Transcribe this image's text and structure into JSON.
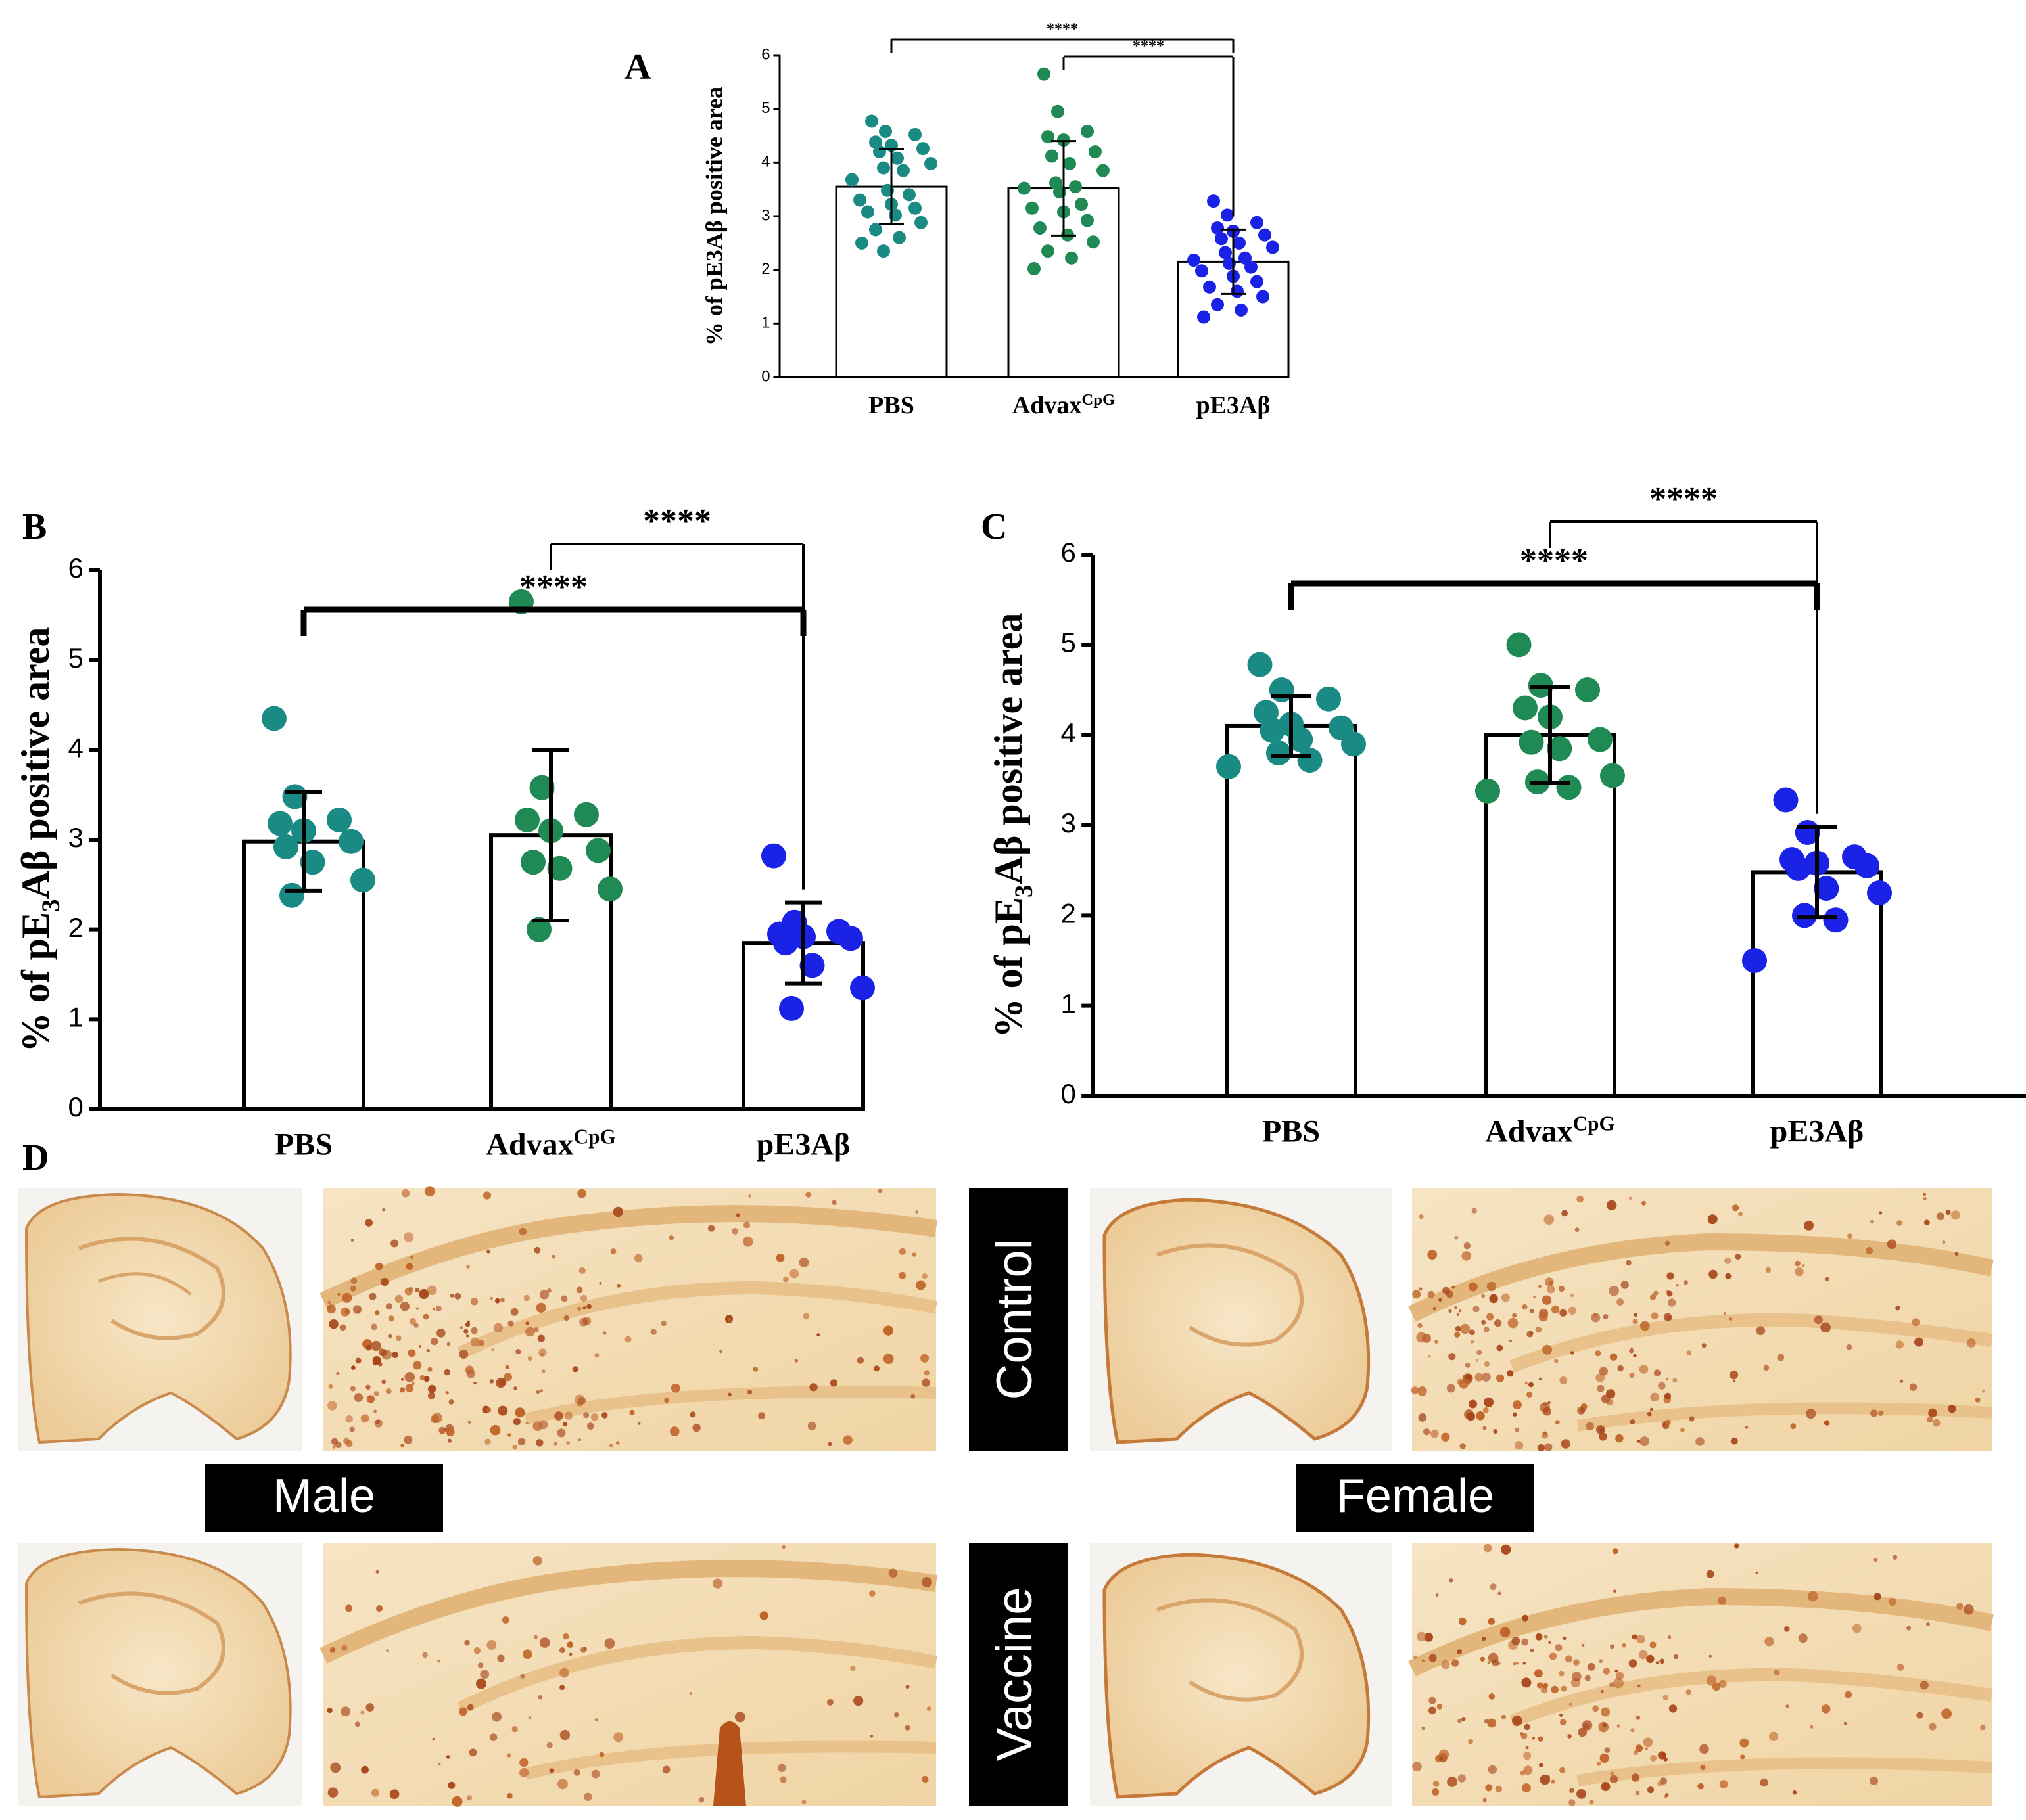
{
  "panels": {
    "A": {
      "letter": "A"
    },
    "B": {
      "letter": "B"
    },
    "C": {
      "letter": "C"
    },
    "D": {
      "letter": "D"
    }
  },
  "labels": {
    "control": "Control",
    "vaccine": "Vaccine",
    "male": "Male",
    "female": "Female"
  },
  "colors": {
    "pbs": "#1a8a84",
    "advax": "#1f8a54",
    "pe3ab": "#1a22e6",
    "tissue_bg": "#f3dcb6",
    "tissue_stain": "#b5531a"
  },
  "chart_data": [
    {
      "id": "A",
      "type": "bar",
      "title": "",
      "ylabel": "% of pE3Aβ positive area",
      "ylim": [
        0,
        6
      ],
      "yticks": [
        "0",
        "1",
        "2",
        "3",
        "4",
        "5",
        "6"
      ],
      "categories": [
        "PBS",
        "Advax",
        "pE3Aβ"
      ],
      "category_sup": [
        "",
        "CpG",
        ""
      ],
      "means": [
        3.55,
        3.52,
        2.15
      ],
      "sd": [
        0.7,
        0.88,
        0.6
      ],
      "points": [
        [
          4.77,
          4.58,
          4.52,
          4.38,
          4.32,
          4.26,
          4.2,
          4.08,
          3.98,
          3.9,
          3.85,
          3.68,
          3.48,
          3.4,
          3.3,
          3.22,
          3.15,
          3.08,
          3.02,
          2.88,
          2.75,
          2.6,
          2.5,
          2.35
        ],
        [
          5.65,
          4.95,
          4.58,
          4.48,
          4.42,
          4.2,
          4.12,
          3.98,
          3.85,
          3.62,
          3.55,
          3.52,
          3.45,
          3.22,
          3.15,
          3.08,
          2.92,
          2.78,
          2.65,
          2.52,
          2.35,
          2.22,
          2.02
        ],
        [
          3.28,
          3.02,
          2.88,
          2.78,
          2.72,
          2.65,
          2.58,
          2.5,
          2.42,
          2.32,
          2.22,
          2.18,
          2.12,
          2.05,
          1.98,
          1.88,
          1.78,
          1.68,
          1.6,
          1.5,
          1.35,
          1.25,
          1.12
        ]
      ],
      "significance": [
        {
          "from": 0,
          "to": 2,
          "label": "****"
        },
        {
          "from": 1,
          "to": 2,
          "label": "****"
        }
      ]
    },
    {
      "id": "B",
      "type": "bar",
      "title": "",
      "ylabel": "% of pE",
      "ylabel_sub": "3",
      "ylabel_end": "Aβ positive area",
      "ylim": [
        0,
        6
      ],
      "yticks": [
        "0",
        "1",
        "2",
        "3",
        "4",
        "5",
        "6"
      ],
      "categories": [
        "PBS",
        "Advax",
        "pE3Aβ"
      ],
      "category_sup": [
        "",
        "CpG",
        ""
      ],
      "means": [
        2.98,
        3.05,
        1.85
      ],
      "sd": [
        0.55,
        0.95,
        0.45
      ],
      "points": [
        [
          4.35,
          3.48,
          3.22,
          3.18,
          3.1,
          2.98,
          2.92,
          2.75,
          2.55,
          2.38
        ],
        [
          5.65,
          3.58,
          3.28,
          3.22,
          3.1,
          2.88,
          2.75,
          2.68,
          2.45,
          2.0
        ],
        [
          2.82,
          2.08,
          1.98,
          1.95,
          1.92,
          1.9,
          1.85,
          1.6,
          1.35,
          1.12
        ]
      ],
      "significance": [
        {
          "from": 0,
          "to": 2,
          "label": "****"
        },
        {
          "from": 1,
          "to": 2,
          "label": "****"
        }
      ]
    },
    {
      "id": "C",
      "type": "bar",
      "title": "",
      "ylabel": "% of pE",
      "ylabel_sub": "3",
      "ylabel_end": "Aβ positive area",
      "ylim": [
        0,
        6
      ],
      "yticks": [
        "0",
        "1",
        "2",
        "3",
        "4",
        "5",
        "6"
      ],
      "categories": [
        "PBS",
        "Advax",
        "pE3Aβ"
      ],
      "category_sup": [
        "",
        "CpG",
        ""
      ],
      "means": [
        4.1,
        4.0,
        2.48
      ],
      "sd": [
        0.33,
        0.53,
        0.5
      ],
      "points": [
        [
          4.78,
          4.5,
          4.4,
          4.25,
          4.12,
          4.08,
          4.05,
          3.95,
          3.9,
          3.8,
          3.72,
          3.65
        ],
        [
          5.0,
          4.55,
          4.5,
          4.3,
          4.2,
          3.95,
          3.92,
          3.85,
          3.55,
          3.48,
          3.42,
          3.38
        ],
        [
          3.28,
          2.92,
          2.65,
          2.62,
          2.58,
          2.55,
          2.52,
          2.3,
          2.25,
          2.0,
          1.95,
          1.5
        ]
      ],
      "significance": [
        {
          "from": 0,
          "to": 2,
          "label": "****"
        },
        {
          "from": 1,
          "to": 2,
          "label": "****"
        }
      ]
    }
  ]
}
